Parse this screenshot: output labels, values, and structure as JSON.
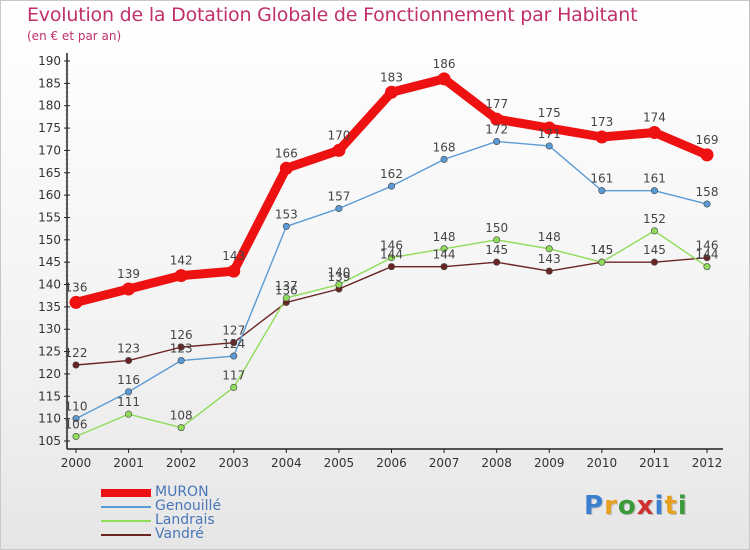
{
  "chart_data": {
    "type": "line",
    "title": "Evolution de la Dotation Globale de Fonctionnement par Habitant",
    "subtitle": "(en € et par an)",
    "xlabel": "",
    "ylabel": "",
    "x": [
      "2000",
      "2001",
      "2002",
      "2003",
      "2004",
      "2005",
      "2006",
      "2007",
      "2008",
      "2009",
      "2010",
      "2011",
      "2012"
    ],
    "ylim": [
      105,
      190
    ],
    "yticks": [
      105,
      110,
      115,
      120,
      125,
      130,
      135,
      140,
      145,
      150,
      155,
      160,
      165,
      170,
      175,
      180,
      185,
      190
    ],
    "grid": false,
    "legend_position": "bottom-left",
    "series": [
      {
        "name": "MURON",
        "color": "#ee1111",
        "values": [
          136,
          139,
          142,
          143,
          166,
          170,
          183,
          186,
          177,
          175,
          173,
          174,
          169
        ]
      },
      {
        "name": "Genouillé",
        "color": "#5b9bd5",
        "values": [
          110,
          116,
          123,
          124,
          153,
          157,
          162,
          168,
          172,
          171,
          161,
          161,
          158
        ]
      },
      {
        "name": "Landrais",
        "color": "#8fdc5a",
        "values": [
          106,
          111,
          108,
          117,
          137,
          140,
          146,
          148,
          150,
          148,
          145,
          152,
          144
        ]
      },
      {
        "name": "Vandré",
        "color": "#6b2424",
        "values": [
          122,
          123,
          126,
          127,
          136,
          139,
          144,
          144,
          145,
          143,
          145,
          145,
          146
        ]
      }
    ]
  },
  "logo": {
    "letters": [
      "P",
      "r",
      "o",
      "x",
      "i",
      "t",
      "i"
    ],
    "colors": [
      "#3a7fd0",
      "#e8a020",
      "#3a9a3a",
      "#d03030",
      "#3a7fd0",
      "#e8a020",
      "#3a9a3a"
    ]
  }
}
